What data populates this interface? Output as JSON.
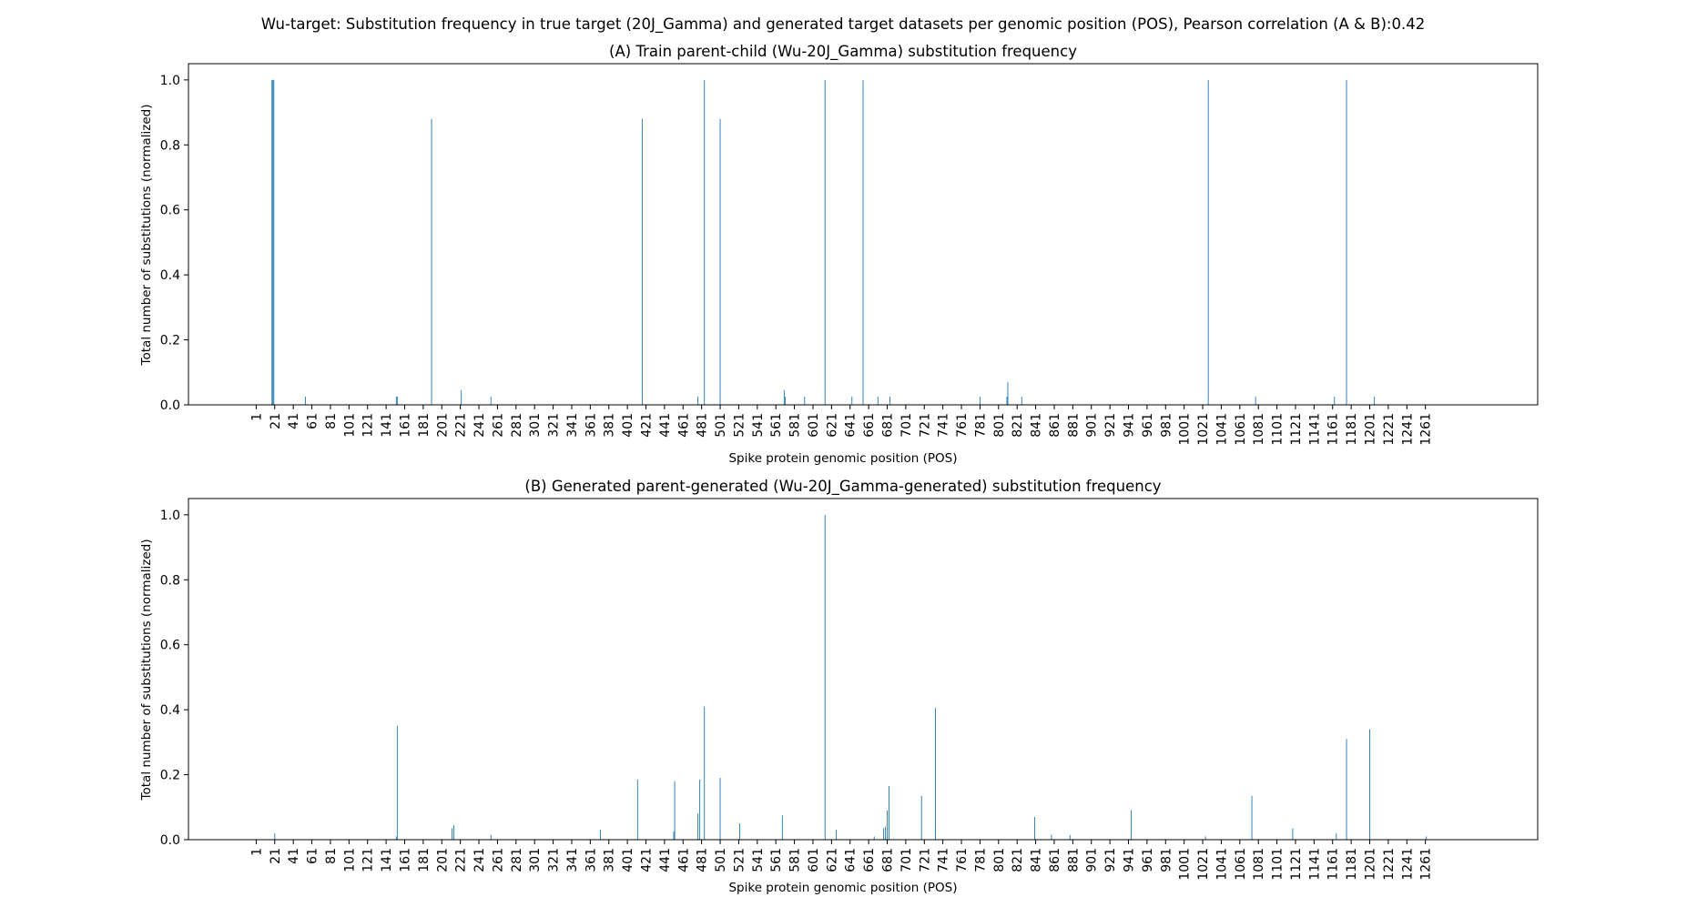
{
  "figure": {
    "suptitle": "Wu-target: Substitution frequency in true target (20J_Gamma) and generated target datasets per genomic position (POS), Pearson correlation (A & B):0.42"
  },
  "bar_color": "#1f77b4",
  "chart_data": [
    {
      "type": "bar",
      "title": "(A) Train parent-child (Wu-20J_Gamma) substitution frequency",
      "xlabel": "Spike protein genomic position (POS)",
      "ylabel": "Total number of substitutions (normalized)",
      "xlim": [
        -72,
        1382
      ],
      "ylim": [
        0,
        1.05
      ],
      "yticks": [
        0.0,
        0.2,
        0.4,
        0.6,
        0.8,
        1.0
      ],
      "ytick_labels": [
        "0.0",
        "0.2",
        "0.4",
        "0.6",
        "0.8",
        "1.0"
      ],
      "xticks": [
        1,
        21,
        41,
        61,
        81,
        101,
        121,
        141,
        161,
        181,
        201,
        221,
        241,
        261,
        281,
        301,
        321,
        341,
        361,
        381,
        401,
        421,
        441,
        461,
        481,
        501,
        521,
        541,
        561,
        581,
        601,
        621,
        641,
        661,
        681,
        701,
        721,
        741,
        761,
        781,
        801,
        821,
        841,
        861,
        881,
        901,
        921,
        941,
        961,
        981,
        1001,
        1021,
        1041,
        1061,
        1081,
        1101,
        1121,
        1141,
        1161,
        1181,
        1201,
        1221,
        1241,
        1261
      ],
      "xtick_labels": [
        "1",
        "21",
        "41",
        "61",
        "81",
        "101",
        "121",
        "141",
        "161",
        "181",
        "201",
        "221",
        "241",
        "261",
        "281",
        "301",
        "321",
        "341",
        "361",
        "381",
        "401",
        "421",
        "441",
        "461",
        "481",
        "501",
        "521",
        "541",
        "561",
        "581",
        "601",
        "621",
        "641",
        "661",
        "681",
        "701",
        "721",
        "741",
        "761",
        "781",
        "801",
        "821",
        "841",
        "861",
        "881",
        "901",
        "921",
        "941",
        "961",
        "981",
        "1001",
        "1021",
        "1041",
        "1061",
        "1081",
        "1101",
        "1121",
        "1141",
        "1161",
        "1181",
        "1201",
        "1221",
        "1241",
        "1261"
      ],
      "x": [
        18,
        19,
        20,
        54,
        152,
        153,
        190,
        222,
        254,
        417,
        477,
        484,
        501,
        570,
        571,
        592,
        614,
        643,
        655,
        671,
        684,
        781,
        810,
        811,
        826,
        1027,
        1078,
        1163,
        1176,
        1206
      ],
      "values": [
        1.0,
        1.0,
        1.0,
        0.025,
        0.025,
        0.025,
        0.88,
        0.045,
        0.025,
        0.88,
        0.025,
        1.0,
        0.88,
        0.045,
        0.025,
        0.025,
        1.0,
        0.025,
        1.0,
        0.025,
        0.025,
        0.025,
        0.025,
        0.07,
        0.025,
        1.0,
        0.025,
        0.025,
        1.0,
        0.025
      ]
    },
    {
      "type": "bar",
      "title": "(B) Generated parent-generated (Wu-20J_Gamma-generated) substitution frequency",
      "xlabel": "Spike protein genomic position (POS)",
      "ylabel": "Total number of substitutions (normalized)",
      "xlim": [
        -72,
        1382
      ],
      "ylim": [
        0,
        1.05
      ],
      "yticks": [
        0.0,
        0.2,
        0.4,
        0.6,
        0.8,
        1.0
      ],
      "ytick_labels": [
        "0.0",
        "0.2",
        "0.4",
        "0.6",
        "0.8",
        "1.0"
      ],
      "xticks": [
        1,
        21,
        41,
        61,
        81,
        101,
        121,
        141,
        161,
        181,
        201,
        221,
        241,
        261,
        281,
        301,
        321,
        341,
        361,
        381,
        401,
        421,
        441,
        461,
        481,
        501,
        521,
        541,
        561,
        581,
        601,
        621,
        641,
        661,
        681,
        701,
        721,
        741,
        761,
        781,
        801,
        821,
        841,
        861,
        881,
        901,
        921,
        941,
        961,
        981,
        1001,
        1021,
        1041,
        1061,
        1081,
        1101,
        1121,
        1141,
        1161,
        1181,
        1201,
        1221,
        1241,
        1261
      ],
      "xtick_labels": [
        "1",
        "21",
        "41",
        "61",
        "81",
        "101",
        "121",
        "141",
        "161",
        "181",
        "201",
        "221",
        "241",
        "261",
        "281",
        "301",
        "321",
        "341",
        "361",
        "381",
        "401",
        "421",
        "441",
        "461",
        "481",
        "501",
        "521",
        "541",
        "561",
        "581",
        "601",
        "621",
        "641",
        "661",
        "681",
        "701",
        "721",
        "741",
        "761",
        "781",
        "801",
        "821",
        "841",
        "861",
        "881",
        "901",
        "921",
        "941",
        "961",
        "981",
        "1001",
        "1021",
        "1041",
        "1061",
        "1081",
        "1101",
        "1121",
        "1141",
        "1161",
        "1181",
        "1201",
        "1221",
        "1241",
        "1261"
      ],
      "x": [
        21,
        152,
        153,
        212,
        214,
        254,
        372,
        412,
        451,
        452,
        477,
        479,
        484,
        501,
        522,
        568,
        614,
        626,
        667,
        677,
        679,
        681,
        683,
        718,
        733,
        840,
        858,
        878,
        944,
        1024,
        1074,
        1118,
        1165,
        1176,
        1201,
        1262
      ],
      "values": [
        0.02,
        0.01,
        0.35,
        0.035,
        0.045,
        0.015,
        0.03,
        0.185,
        0.025,
        0.18,
        0.08,
        0.185,
        0.41,
        0.19,
        0.05,
        0.075,
        1.0,
        0.03,
        0.01,
        0.035,
        0.04,
        0.09,
        0.165,
        0.135,
        0.405,
        0.07,
        0.015,
        0.015,
        0.09,
        0.01,
        0.135,
        0.035,
        0.02,
        0.31,
        0.34,
        0.01
      ]
    }
  ]
}
